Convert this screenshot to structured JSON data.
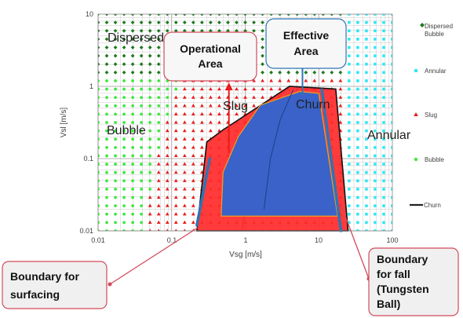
{
  "chart_data": {
    "type": "scatter",
    "title": "",
    "xlabel": "Vsg [m/s]",
    "ylabel": "Vsl [m/s]",
    "xscale": "log",
    "yscale": "log",
    "xlim": [
      0.01,
      100
    ],
    "ylim": [
      0.01,
      10
    ],
    "xticks": [
      "0.01",
      "0.1",
      "1",
      "10",
      "100"
    ],
    "yticks": [
      "0.01",
      "0.1",
      "1",
      "10"
    ],
    "grid": true,
    "legend_position": "right",
    "series": [
      {
        "name": "Dispersed Bubble",
        "marker": "diamond",
        "color": "#1e7a1e"
      },
      {
        "name": "Annular",
        "marker": "square",
        "color": "#33e6f2"
      },
      {
        "name": "Slug",
        "marker": "triangle",
        "color": "#e81c1c"
      },
      {
        "name": "Bubble",
        "marker": "circle",
        "color": "#3ee83e"
      },
      {
        "name": "Churn",
        "marker": "line",
        "color": "#222222"
      }
    ],
    "regime_labels": [
      "Dispersed Bubble",
      "Bubble",
      "Slug",
      "Churn",
      "Annular"
    ],
    "operational_area": {
      "label": "Operational Area",
      "color": "#ff2a2a",
      "polygon": [
        [
          0.22,
          0.01
        ],
        [
          0.3,
          0.17
        ],
        [
          0.5,
          0.25
        ],
        [
          4,
          1
        ],
        [
          17,
          0.92
        ],
        [
          25,
          0.01
        ]
      ]
    },
    "effective_area": {
      "label": "Effective Area",
      "color": "#3a62c8",
      "polygon": [
        [
          0.47,
          0.016
        ],
        [
          0.5,
          0.065
        ],
        [
          0.8,
          0.2
        ],
        [
          1.6,
          0.55
        ],
        [
          5.5,
          0.85
        ],
        [
          10,
          0.8
        ],
        [
          18,
          0.016
        ]
      ]
    },
    "boundaries": [
      {
        "label": "Boundary for surfacing",
        "line": [
          [
            0.22,
            0.012
          ],
          [
            0.33,
            0.1
          ]
        ],
        "color": "#2e74b5"
      },
      {
        "label": "Boundary for fall (Tungsten Ball)",
        "line": [
          [
            11,
            0.9
          ],
          [
            20,
            0.01
          ]
        ],
        "color": "#2e74b5"
      }
    ],
    "annotation_arrows": [
      {
        "target": "Operational Area",
        "from": [
          0.6,
          0.12
        ],
        "to": [
          0.6,
          1.0
        ],
        "color": "#e81c1c"
      },
      {
        "target": "Effective Area",
        "from": [
          6,
          0.75
        ],
        "to": [
          6,
          2.2
        ],
        "color": "#2e74b5"
      }
    ]
  },
  "labels": {
    "operational_area": [
      "Operational",
      "Area"
    ],
    "effective_area": [
      "Effective",
      "Area"
    ],
    "boundary_surfacing": [
      "Boundary for",
      "surfacing"
    ],
    "boundary_fall": [
      "Boundary",
      "for fall",
      "(Tungsten",
      "Ball)"
    ],
    "regime_dispersed": "Dispersed Bubble",
    "regime_bubble": "Bubble",
    "regime_slug": "Slug",
    "regime_churn": "Churn",
    "regime_annular": "Annular"
  },
  "legend": [
    "Dispersed Bubble",
    "Annular",
    "Slug",
    "Bubble",
    "Churn"
  ]
}
